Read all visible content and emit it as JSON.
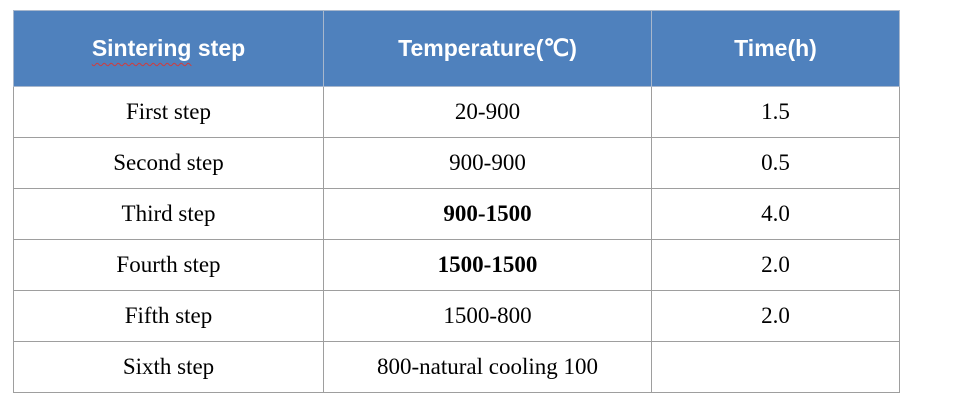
{
  "table": {
    "headers": [
      {
        "label_a": "Sintering",
        "label_b": " step"
      },
      {
        "label": "Temperature(℃)"
      },
      {
        "label": "Time(h)"
      }
    ],
    "rows": [
      {
        "step": "First step",
        "temperature": "20-900",
        "time": "1.5",
        "bold_temp": false
      },
      {
        "step": "Second step",
        "temperature": "900-900",
        "time": "0.5",
        "bold_temp": false
      },
      {
        "step": "Third step",
        "temperature": "900-1500",
        "time": "4.0",
        "bold_temp": true
      },
      {
        "step": "Fourth step",
        "temperature": "1500-1500",
        "time": "2.0",
        "bold_temp": true
      },
      {
        "step": "Fifth step",
        "temperature": "1500-800",
        "time": "2.0",
        "bold_temp": false
      },
      {
        "step": "Sixth step",
        "temperature": "800-natural cooling 100",
        "time": "",
        "bold_temp": false
      }
    ]
  },
  "colors": {
    "header_bg": "#4f81bd",
    "header_text": "#ffffff",
    "border": "#9e9e9e",
    "spellcheck_underline": "#d23b3b"
  }
}
